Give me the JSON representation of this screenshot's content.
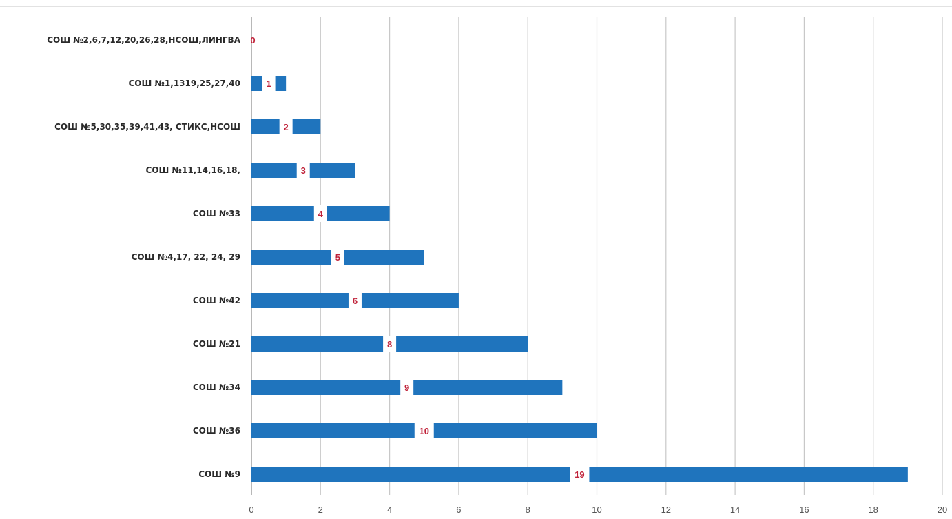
{
  "chart_data": {
    "type": "bar",
    "orientation": "horizontal",
    "categories": [
      "СОШ №2,6,7,12,20,26,28,НСОШ,ЛИНГВА",
      "СОШ №1,1319,25,27,40",
      "СОШ №5,30,35,39,41,43, СТИКС,НСОШ",
      "СОШ №11,14,16,18,",
      "СОШ №33",
      "СОШ №4,17, 22, 24, 29",
      "СОШ №42",
      "СОШ №21",
      "СОШ №34",
      "СОШ №36",
      "СОШ №9"
    ],
    "values": [
      0,
      1,
      2,
      3,
      4,
      5,
      6,
      8,
      9,
      10,
      19
    ],
    "data_labels": [
      "0",
      "1",
      "2",
      "3",
      "4",
      "5",
      "6",
      "8",
      "9",
      "10",
      "19"
    ],
    "xlim": [
      0,
      20
    ],
    "xticks": [
      0,
      2,
      4,
      6,
      8,
      10,
      12,
      14,
      16,
      18,
      20
    ],
    "grid": true,
    "legend": "none",
    "title": "",
    "xlabel": "",
    "ylabel": "",
    "colors": {
      "bar": "#1f74bd",
      "data_label": "#c0233a",
      "grid": "#c8c8c8"
    }
  }
}
